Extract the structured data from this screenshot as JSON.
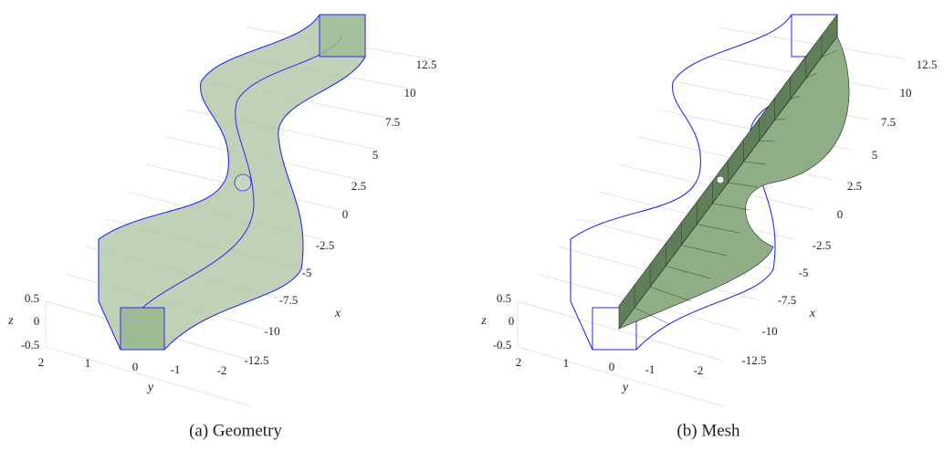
{
  "panels": [
    {
      "caption": "(a) Geometry",
      "x_label": "x",
      "y_label": "y",
      "z_label": "z",
      "x_ticks": [
        12.5,
        10,
        7.5,
        5,
        2.5,
        0,
        -2.5,
        -5,
        -7.5,
        -10,
        -12.5
      ],
      "y_ticks": [
        2,
        1,
        0,
        -1,
        -2
      ],
      "z_ticks": [
        0.5,
        0,
        -0.5
      ]
    },
    {
      "caption": "(b) Mesh",
      "x_label": "x",
      "y_label": "y",
      "z_label": "z",
      "x_ticks": [
        12.5,
        10,
        7.5,
        5,
        2.5,
        0,
        -2.5,
        -5,
        -7.5,
        -10,
        -12.5
      ],
      "y_ticks": [
        2,
        1,
        0,
        -1,
        -2
      ],
      "z_ticks": [
        0.5,
        0,
        -0.5
      ]
    }
  ]
}
